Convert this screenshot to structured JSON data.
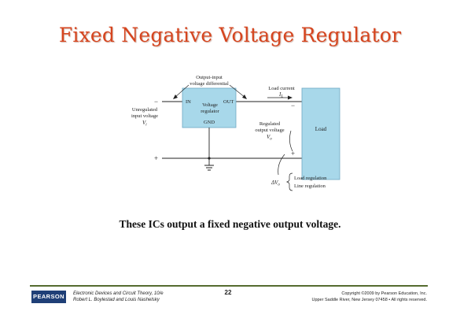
{
  "title": "Fixed Negative Voltage Regulator",
  "diagram": {
    "unregulated_label": [
      "Unregulated",
      "input voltage"
    ],
    "vi": "V",
    "vi_sub": "i",
    "differential_label": [
      "Output-input",
      "voltage differential"
    ],
    "in": "IN",
    "out": "OUT",
    "regulator_label": [
      "Voltage",
      "regulator"
    ],
    "gnd": "GND",
    "load_current": "Load current",
    "il": "I",
    "il_sub": "L",
    "regulated_label": [
      "Regulated",
      "output voltage"
    ],
    "vo": "V",
    "vo_sub": "o",
    "load": "Load",
    "minus": "−",
    "plus": "+",
    "delta_vo": "ΔV",
    "delta_vo_sub": "o",
    "regulation_items": [
      "Load regulation",
      "Line regulation"
    ],
    "colors": {
      "box_fill": "#a8d8ea",
      "box_stroke": "#6fa9c4",
      "line": "#222222"
    }
  },
  "caption": "These ICs output a fixed negative output voltage.",
  "footer": {
    "logo": "PEARSON",
    "book_line1": "Electronic Devices and Circuit Theory, 10/e",
    "book_line2": "Robert L. Boylestad and Louis Nashelsky",
    "page": "22",
    "copyright_line1": "Copyright ©2009 by Pearson Education, Inc.",
    "copyright_line2": "Upper Saddle River, New Jersey 07458 • All rights reserved."
  }
}
